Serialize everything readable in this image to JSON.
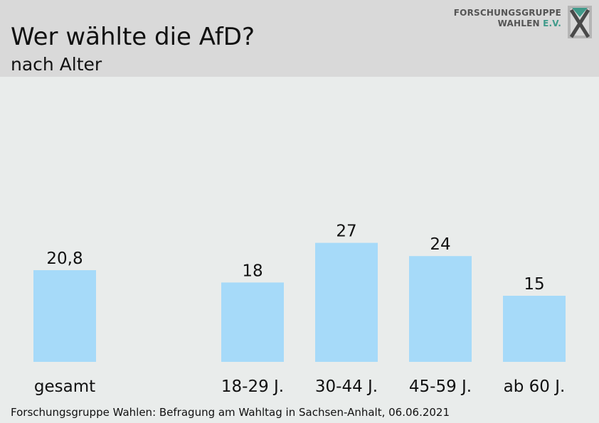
{
  "header": {
    "title": "Wer wählte die AfD?",
    "subtitle": "nach Alter"
  },
  "logo": {
    "line1": "FORSCHUNGSGRUPPE",
    "line2_main": "WAHLEN",
    "line2_accent": "E.V.",
    "icon": "fgw-x-logo-icon"
  },
  "footer": {
    "source": "Forschungsgruppe Wahlen: Befragung am Wahltag in Sachsen-Anhalt, 06.06.2021"
  },
  "colors": {
    "bar": "#a6daf9",
    "background": "#e9eceb",
    "header": "#d9d9d9",
    "logo_accent": "#3f9a8a"
  },
  "chart_data": {
    "type": "bar",
    "categories": [
      "gesamt",
      "18-29 J.",
      "30-44 J.",
      "45-59 J.",
      "ab 60 J."
    ],
    "values": [
      20.8,
      18,
      27,
      24,
      15
    ],
    "value_labels": [
      "20,8",
      "18",
      "27",
      "24",
      "15"
    ],
    "title": "Wer wählte die AfD?",
    "subtitle": "nach Alter",
    "xlabel": "",
    "ylabel": "",
    "grid": false,
    "legend": "none"
  }
}
